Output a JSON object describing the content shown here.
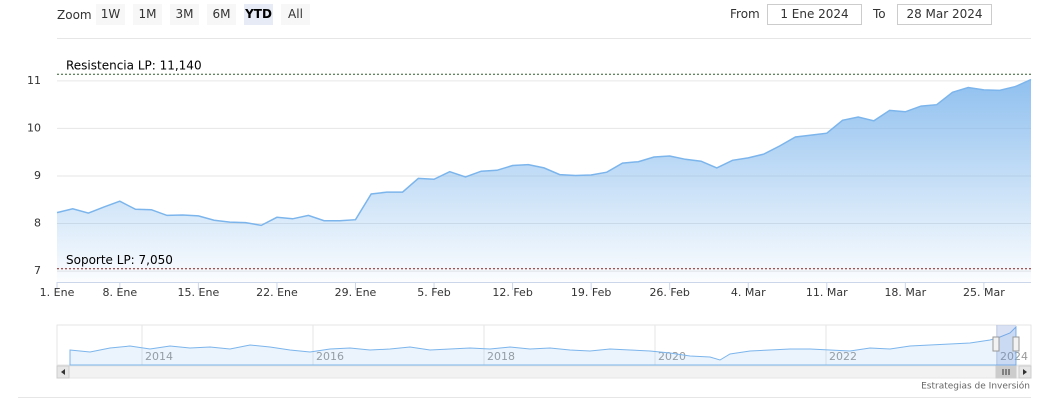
{
  "chart_data": {
    "type": "area",
    "range_selector": {
      "label": "Zoom",
      "buttons": [
        "1W",
        "1M",
        "3M",
        "6M",
        "YTD",
        "All"
      ],
      "selected": 4
    },
    "date_range": {
      "from_label": "From",
      "from": "1 Ene 2024",
      "to_label": "To",
      "to": "28 Mar 2024"
    },
    "categories": [
      "1. Ene",
      null,
      null,
      null,
      "8. Ene",
      null,
      null,
      null,
      null,
      "15. Ene",
      null,
      null,
      null,
      null,
      "22. Ene",
      null,
      null,
      null,
      null,
      "29. Ene",
      null,
      null,
      null,
      null,
      "5. Feb",
      null,
      null,
      null,
      null,
      "12. Feb",
      null,
      null,
      null,
      null,
      "19. Feb",
      null,
      null,
      null,
      null,
      "26. Feb",
      null,
      null,
      null,
      null,
      "4. Mar",
      null,
      null,
      null,
      null,
      "11. Mar",
      null,
      null,
      null,
      null,
      "18. Mar",
      null,
      null,
      null,
      null,
      "25. Mar",
      null,
      null,
      null
    ],
    "series": [
      {
        "color": "#7cb5ec",
        "values": [
          8.23,
          8.31,
          8.22,
          8.35,
          8.47,
          8.3,
          8.29,
          8.17,
          8.18,
          8.16,
          8.07,
          8.03,
          8.02,
          7.96,
          8.13,
          8.1,
          8.17,
          8.06,
          8.06,
          8.08,
          8.62,
          8.66,
          8.66,
          8.95,
          8.93,
          9.09,
          8.98,
          9.1,
          9.12,
          9.22,
          9.24,
          9.17,
          9.03,
          9.01,
          9.02,
          9.08,
          9.27,
          9.3,
          9.4,
          9.42,
          9.35,
          9.31,
          9.17,
          9.33,
          9.38,
          9.46,
          9.63,
          9.82,
          9.86,
          9.9,
          10.17,
          10.24,
          10.16,
          10.38,
          10.35,
          10.47,
          10.5,
          10.76,
          10.86,
          10.81,
          10.8,
          10.88,
          11.03
        ]
      }
    ],
    "ylim": [
      6.77,
      11.86
    ],
    "yticks": [
      7,
      8,
      9,
      10,
      11
    ],
    "grid": true,
    "plot_lines": [
      {
        "label": "Resistencia LP: 11,140",
        "value": 11.14,
        "color": "#2e5e2e"
      },
      {
        "label": "Soporte LP: 7,050",
        "value": 7.05,
        "color": "#8b1a1a"
      }
    ],
    "navigator_years": [
      "2014",
      "2016",
      "2018",
      "2020",
      "2022",
      "2024"
    ],
    "credits": "Estrategias de Inversión"
  }
}
